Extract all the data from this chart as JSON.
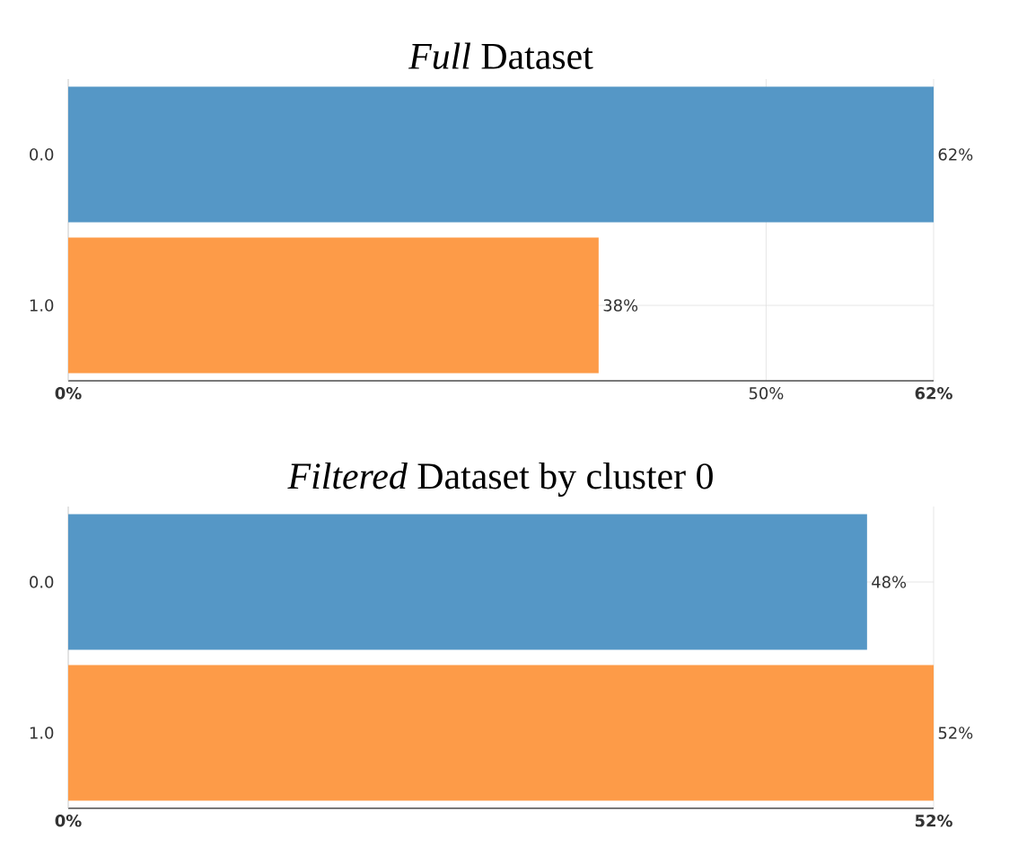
{
  "chart_data": [
    {
      "type": "bar",
      "orientation": "horizontal",
      "title": "*Full* Dataset",
      "categories": [
        "0.0",
        "1.0"
      ],
      "values": [
        62,
        38
      ],
      "value_labels": [
        "62%",
        "38%"
      ],
      "colors": [
        "#5597c6",
        "#fd9b48"
      ],
      "xlim": [
        0,
        62
      ],
      "xticks": [
        {
          "value": 0,
          "label": "0%"
        },
        {
          "value": 50,
          "label": "50%"
        },
        {
          "value": 62,
          "label": "62%"
        }
      ],
      "grid": true
    },
    {
      "type": "bar",
      "orientation": "horizontal",
      "title": "*Filtered* Dataset by cluster 0",
      "categories": [
        "0.0",
        "1.0"
      ],
      "values": [
        48,
        52
      ],
      "value_labels": [
        "48%",
        "52%"
      ],
      "colors": [
        "#5597c6",
        "#fd9b48"
      ],
      "xlim": [
        0,
        52
      ],
      "xticks": [
        {
          "value": 0,
          "label": "0%"
        },
        {
          "value": 52,
          "label": "52%"
        }
      ],
      "grid": true
    }
  ]
}
